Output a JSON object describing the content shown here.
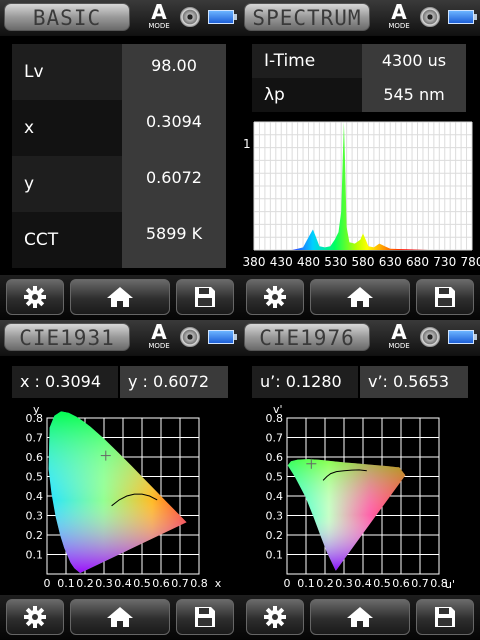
{
  "basic": {
    "title": "BASIC",
    "mode_letter": "A",
    "mode_label": "MODE",
    "rows": [
      {
        "label": "Lv",
        "value": "98.00"
      },
      {
        "label": "x",
        "value": "0.3094"
      },
      {
        "label": "y",
        "value": "0.6072"
      },
      {
        "label": "CCT",
        "value": "5899 K"
      }
    ]
  },
  "spectrum": {
    "title": "SPECTRUM",
    "mode_letter": "A",
    "mode_label": "MODE",
    "rows": [
      {
        "label": "I-Time",
        "value": "4300 us"
      },
      {
        "label": "λp",
        "value": "545 nm"
      }
    ]
  },
  "cie1931": {
    "title": "CIE1931",
    "mode_letter": "A",
    "mode_label": "MODE",
    "x_text": "x : 0.3094",
    "y_text": "y : 0.6072"
  },
  "cie1976": {
    "title": "CIE1976",
    "mode_letter": "A",
    "mode_label": "MODE",
    "u_text": "u’: 0.1280",
    "v_text": "v’: 0.5653"
  },
  "chart_data": [
    {
      "type": "line",
      "x_ticks": [
        "380",
        "430",
        "480",
        "530",
        "580",
        "630",
        "680",
        "730",
        "780"
      ],
      "y_tick": "1",
      "xlim": [
        380,
        780
      ],
      "ylim": [
        0,
        1
      ],
      "series": [
        {
          "x": [
            380,
            450,
            460,
            470,
            480,
            488,
            492,
            500,
            510,
            520,
            528,
            535,
            540,
            543,
            545,
            547,
            550,
            555,
            565,
            575,
            580,
            585,
            590,
            600,
            610,
            620,
            630,
            700,
            780
          ],
          "values": [
            0,
            0,
            0.01,
            0.02,
            0.1,
            0.16,
            0.12,
            0.03,
            0.02,
            0.03,
            0.08,
            0.14,
            0.3,
            0.72,
            1.0,
            0.7,
            0.18,
            0.06,
            0.05,
            0.08,
            0.13,
            0.08,
            0.03,
            0.02,
            0.05,
            0.03,
            0.01,
            0,
            0
          ]
        }
      ]
    },
    {
      "type": "scatter",
      "xlabel": "x",
      "ylabel": "y",
      "x_ticks": [
        "0",
        "0.1",
        "0.2",
        "0.3",
        "0.4",
        "0.5",
        "0.6",
        "0.7",
        "0.8"
      ],
      "x_tail": "x",
      "y_ticks": [
        "0.1",
        "0.2",
        "0.3",
        "0.4",
        "0.5",
        "0.6",
        "0.7",
        "0.8"
      ],
      "xlim": [
        0,
        0.8
      ],
      "ylim": [
        0,
        0.8
      ],
      "grid": true,
      "points": [
        {
          "x": 0.3094,
          "y": 0.6072
        }
      ]
    },
    {
      "type": "scatter",
      "xlabel": "u'",
      "ylabel": "v'",
      "x_ticks": [
        "0",
        "0.1",
        "0.2",
        "0.3",
        "0.4",
        "0.5",
        "0.6",
        "0.7",
        "0.8"
      ],
      "y_ticks": [
        "0.1",
        "0.2",
        "0.3",
        "0.4",
        "0.5",
        "0.6",
        "0.7",
        "0.8"
      ],
      "xlim": [
        0,
        0.8
      ],
      "ylim": [
        0,
        0.8
      ],
      "grid": true,
      "points": [
        {
          "x": 0.128,
          "y": 0.5653
        }
      ]
    }
  ]
}
